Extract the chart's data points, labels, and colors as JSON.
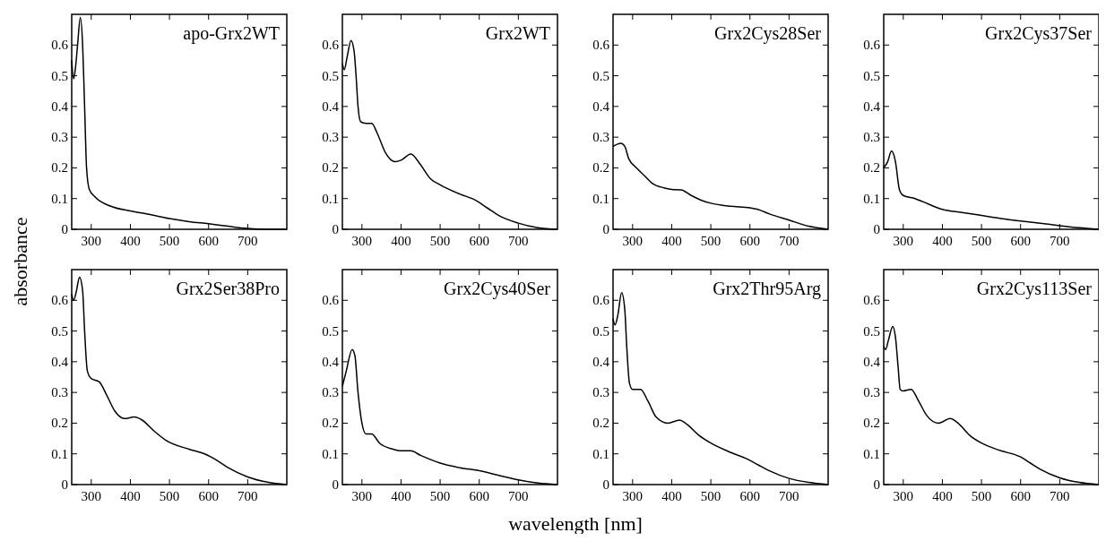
{
  "chart_data": [
    {
      "type": "line",
      "title": "apo-Grx2WT",
      "ylabel": "absorbance",
      "color": "#000000",
      "xlim": [
        250,
        800
      ],
      "ylim": [
        0,
        0.7
      ],
      "xticks": [
        300,
        400,
        500,
        600,
        700
      ],
      "yticks": [
        0,
        0.1,
        0.2,
        0.3,
        0.4,
        0.5,
        0.6
      ],
      "x": [
        250,
        255,
        260,
        265,
        272,
        278,
        283,
        288,
        295,
        310,
        350,
        400,
        450,
        500,
        550,
        600,
        650,
        700,
        750,
        800
      ],
      "values": [
        0.55,
        0.49,
        0.53,
        0.6,
        0.69,
        0.6,
        0.4,
        0.2,
        0.13,
        0.105,
        0.075,
        0.06,
        0.048,
        0.035,
        0.025,
        0.018,
        0.01,
        0.003,
        0,
        0
      ]
    },
    {
      "type": "line",
      "title": "Grx2WT",
      "color": "#000000",
      "xlim": [
        250,
        800
      ],
      "ylim": [
        0,
        0.7
      ],
      "xticks": [
        300,
        400,
        500,
        600,
        700
      ],
      "yticks": [
        0,
        0.1,
        0.2,
        0.3,
        0.4,
        0.5,
        0.6
      ],
      "x": [
        250,
        255,
        262,
        272,
        280,
        285,
        290,
        297,
        310,
        325,
        340,
        360,
        385,
        400,
        425,
        450,
        475,
        500,
        550,
        590,
        620,
        650,
        700,
        750,
        800
      ],
      "values": [
        0.54,
        0.52,
        0.56,
        0.615,
        0.58,
        0.5,
        0.4,
        0.35,
        0.345,
        0.345,
        0.31,
        0.25,
        0.22,
        0.225,
        0.245,
        0.21,
        0.165,
        0.145,
        0.115,
        0.095,
        0.07,
        0.045,
        0.02,
        0.005,
        0
      ]
    },
    {
      "type": "line",
      "title": "Grx2Cys28Ser",
      "color": "#000000",
      "xlim": [
        250,
        800
      ],
      "ylim": [
        0,
        0.7
      ],
      "xticks": [
        300,
        400,
        500,
        600,
        700
      ],
      "yticks": [
        0,
        0.1,
        0.2,
        0.3,
        0.4,
        0.5,
        0.6
      ],
      "x": [
        250,
        270,
        280,
        290,
        310,
        330,
        350,
        380,
        400,
        425,
        450,
        475,
        500,
        550,
        600,
        620,
        650,
        700,
        750,
        800
      ],
      "values": [
        0.27,
        0.28,
        0.27,
        0.23,
        0.2,
        0.175,
        0.15,
        0.135,
        0.13,
        0.128,
        0.11,
        0.095,
        0.085,
        0.075,
        0.07,
        0.065,
        0.05,
        0.03,
        0.01,
        0
      ]
    },
    {
      "type": "line",
      "title": "Grx2Cys37Ser",
      "color": "#000000",
      "xlim": [
        250,
        800
      ],
      "ylim": [
        0,
        0.7
      ],
      "xticks": [
        300,
        400,
        500,
        600,
        700
      ],
      "yticks": [
        0,
        0.1,
        0.2,
        0.3,
        0.4,
        0.5,
        0.6
      ],
      "x": [
        250,
        260,
        270,
        280,
        290,
        300,
        330,
        350,
        400,
        450,
        500,
        550,
        600,
        650,
        700,
        750,
        800
      ],
      "values": [
        0.2,
        0.22,
        0.255,
        0.22,
        0.13,
        0.11,
        0.1,
        0.09,
        0.065,
        0.055,
        0.045,
        0.035,
        0.027,
        0.02,
        0.012,
        0.005,
        0
      ]
    },
    {
      "type": "line",
      "title": "Grx2Ser38Pro",
      "color": "#000000",
      "xlim": [
        250,
        800
      ],
      "ylim": [
        0,
        0.7
      ],
      "xticks": [
        300,
        400,
        500,
        600,
        700
      ],
      "yticks": [
        0,
        0.1,
        0.2,
        0.3,
        0.4,
        0.5,
        0.6
      ],
      "x": [
        250,
        255,
        262,
        270,
        278,
        283,
        290,
        300,
        320,
        340,
        360,
        385,
        410,
        430,
        460,
        490,
        550,
        590,
        620,
        650,
        700,
        750,
        800
      ],
      "values": [
        0.62,
        0.6,
        0.63,
        0.675,
        0.63,
        0.5,
        0.37,
        0.345,
        0.335,
        0.29,
        0.24,
        0.215,
        0.22,
        0.21,
        0.175,
        0.145,
        0.115,
        0.1,
        0.08,
        0.055,
        0.025,
        0.008,
        0
      ]
    },
    {
      "type": "line",
      "title": "Grx2Cys40Ser",
      "xlabel": "wavelength [nm]",
      "color": "#000000",
      "xlim": [
        250,
        800
      ],
      "ylim": [
        0,
        0.7
      ],
      "xticks": [
        300,
        400,
        500,
        600,
        700
      ],
      "yticks": [
        0,
        0.1,
        0.2,
        0.3,
        0.4,
        0.5,
        0.6
      ],
      "x": [
        250,
        260,
        275,
        282,
        290,
        300,
        310,
        325,
        345,
        380,
        400,
        425,
        450,
        500,
        550,
        600,
        650,
        700,
        750,
        800
      ],
      "values": [
        0.32,
        0.37,
        0.44,
        0.42,
        0.3,
        0.2,
        0.165,
        0.165,
        0.135,
        0.115,
        0.11,
        0.11,
        0.095,
        0.07,
        0.055,
        0.045,
        0.03,
        0.015,
        0.005,
        0
      ]
    },
    {
      "type": "line",
      "title": "Grx2Thr95Arg",
      "color": "#000000",
      "xlim": [
        250,
        800
      ],
      "ylim": [
        0,
        0.7
      ],
      "xticks": [
        300,
        400,
        500,
        600,
        700
      ],
      "yticks": [
        0,
        0.1,
        0.2,
        0.3,
        0.4,
        0.5,
        0.6
      ],
      "x": [
        250,
        255,
        262,
        272,
        280,
        285,
        292,
        300,
        320,
        340,
        360,
        390,
        420,
        440,
        470,
        500,
        550,
        590,
        620,
        650,
        700,
        750,
        800
      ],
      "values": [
        0.54,
        0.52,
        0.55,
        0.625,
        0.57,
        0.45,
        0.33,
        0.31,
        0.31,
        0.27,
        0.22,
        0.2,
        0.21,
        0.195,
        0.16,
        0.135,
        0.105,
        0.085,
        0.065,
        0.045,
        0.02,
        0.007,
        0
      ]
    },
    {
      "type": "line",
      "title": "Grx2Cys113Ser",
      "color": "#000000",
      "xlim": [
        250,
        800
      ],
      "ylim": [
        0,
        0.7
      ],
      "xticks": [
        300,
        400,
        500,
        600,
        700
      ],
      "yticks": [
        0,
        0.1,
        0.2,
        0.3,
        0.4,
        0.5,
        0.6
      ],
      "x": [
        250,
        255,
        262,
        273,
        280,
        287,
        292,
        300,
        320,
        340,
        360,
        390,
        420,
        440,
        470,
        500,
        550,
        600,
        625,
        650,
        700,
        750,
        800
      ],
      "values": [
        0.45,
        0.44,
        0.47,
        0.515,
        0.48,
        0.38,
        0.31,
        0.305,
        0.31,
        0.27,
        0.225,
        0.2,
        0.215,
        0.2,
        0.16,
        0.135,
        0.11,
        0.09,
        0.07,
        0.05,
        0.022,
        0.007,
        0
      ]
    }
  ]
}
